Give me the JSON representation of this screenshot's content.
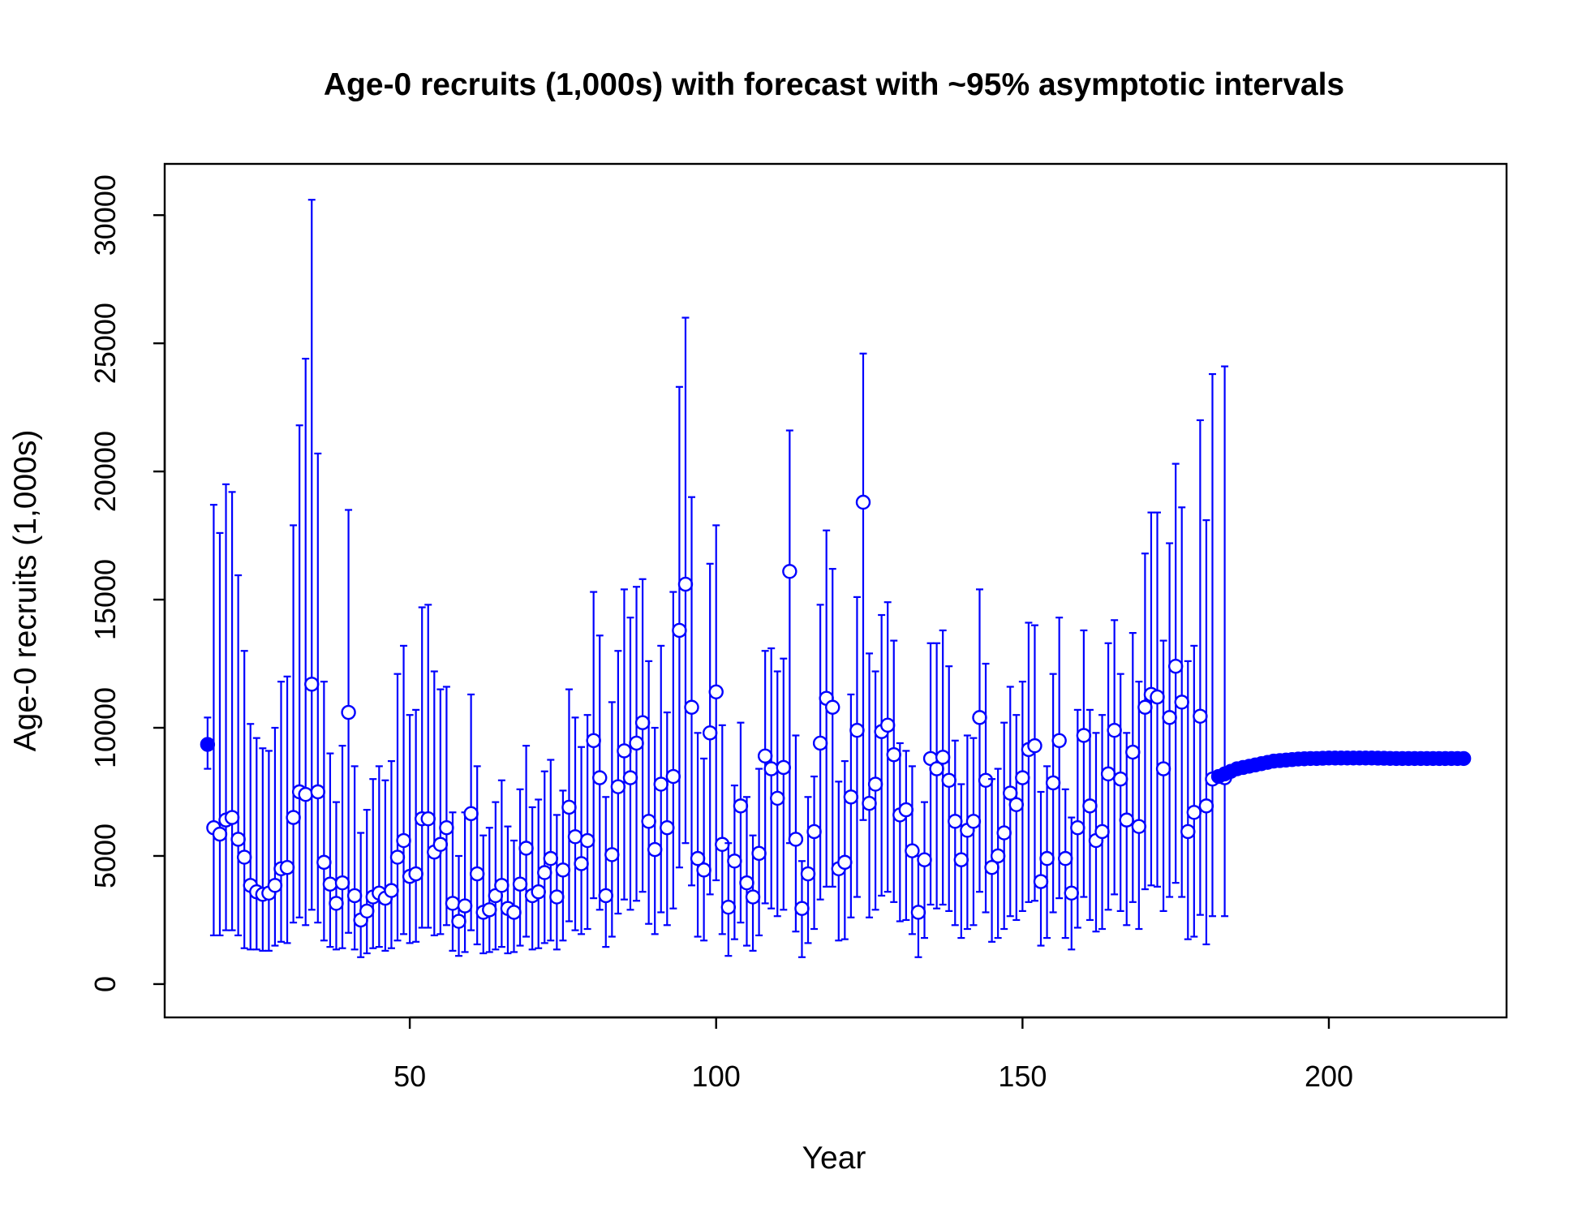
{
  "chart_data": {
    "type": "scatter",
    "title": "Age-0 recruits (1,000s) with forecast with ~95% asymptotic intervals",
    "xlabel": "Year",
    "ylabel": "Age-0 recruits (1,000s)",
    "xlim": [
      10,
      229
    ],
    "ylim": [
      -1300,
      32000
    ],
    "x_ticks": [
      50,
      100,
      150,
      200
    ],
    "x_tick_labels": [
      "50",
      "100",
      "150",
      "200"
    ],
    "y_ticks": [
      0,
      5000,
      10000,
      15000,
      20000,
      25000,
      30000
    ],
    "y_tick_labels": [
      "0",
      "5000",
      "10000",
      "15000",
      "20000",
      "25000",
      "30000"
    ],
    "grid": false,
    "color": "#0000FF",
    "series": [
      {
        "marker": "filled-circle",
        "points": [
          {
            "x": 17,
            "y": 9350,
            "lo": 8400,
            "hi": 10400
          }
        ]
      },
      {
        "marker": "open-circle",
        "x_start": 18,
        "values": [
          6100,
          5850,
          6400,
          6500,
          5650,
          4950,
          3850,
          3600,
          3500,
          3550,
          3850,
          4500,
          4550,
          6500,
          7500,
          7400,
          11700,
          7500,
          4750,
          3900,
          3150,
          3950,
          10600,
          3450,
          2500,
          2850,
          3400,
          3550,
          3350,
          3650,
          4950,
          5600,
          4200,
          4300,
          6450,
          6450,
          5150,
          5450,
          6100,
          3150,
          2450,
          3050,
          6650,
          4300,
          2800,
          2900,
          3450,
          3850,
          2950,
          2800,
          3900,
          5300,
          3450,
          3600,
          4350,
          4900,
          3400,
          4450,
          6900,
          5750,
          4700,
          5600,
          9500,
          8050,
          3450,
          5050,
          7700,
          9100,
          8050,
          9400,
          10200,
          6350,
          5250,
          7800,
          6100,
          8100,
          13800,
          15600,
          10800,
          4900,
          4450,
          9800,
          11400,
          5450,
          3000,
          4800,
          6950,
          3950,
          3400,
          5100,
          8900,
          8400,
          7250,
          8450,
          16100,
          5650,
          2950,
          4300,
          5950,
          9400,
          11150,
          10800,
          4500,
          4750,
          7300,
          9900,
          18800,
          7050,
          7800,
          9850,
          10100,
          8950,
          6600,
          6800,
          5200,
          2800,
          4850,
          8800,
          8400,
          8850,
          7950,
          6350,
          4850,
          6000,
          6350,
          10400,
          7950,
          4550,
          5000,
          5900,
          7450,
          7000,
          8050,
          9150,
          9300,
          4000,
          4900,
          7850,
          9500,
          4900,
          3550,
          6100,
          9700,
          6950,
          5600,
          5950,
          8200,
          9900,
          8000,
          6400,
          9050,
          6150,
          10800,
          11300,
          11200,
          8400,
          10400,
          12400,
          11000,
          5950,
          6700,
          10450,
          6950
        ],
        "lo": [
          1900,
          1900,
          2100,
          2100,
          1900,
          1400,
          1350,
          1350,
          1300,
          1300,
          1500,
          1650,
          1600,
          2400,
          2600,
          2300,
          2900,
          2400,
          1700,
          1450,
          1350,
          1400,
          2000,
          1350,
          1050,
          1200,
          1400,
          1450,
          1300,
          1400,
          1700,
          1950,
          1600,
          1650,
          2200,
          2200,
          1900,
          1950,
          2300,
          1300,
          1100,
          1250,
          2100,
          1550,
          1200,
          1250,
          1350,
          1450,
          1200,
          1250,
          1500,
          1850,
          1350,
          1400,
          1600,
          1700,
          1350,
          1700,
          2450,
          2100,
          1950,
          2150,
          3350,
          2900,
          1450,
          1850,
          2750,
          3300,
          2900,
          3250,
          3600,
          2350,
          1950,
          2800,
          2300,
          2950,
          4550,
          5500,
          3850,
          1850,
          1700,
          3500,
          4050,
          1950,
          1100,
          1750,
          2400,
          1500,
          1300,
          1900,
          3150,
          2950,
          2650,
          2900,
          5500,
          2050,
          1050,
          1600,
          2150,
          3300,
          3800,
          3800,
          1700,
          1750,
          2600,
          3400,
          6400,
          2600,
          2900,
          3450,
          3600,
          3200,
          2450,
          2500,
          1950,
          1050,
          1800,
          3100,
          2950,
          3100,
          2850,
          2300,
          1800,
          2150,
          2300,
          3600,
          2800,
          1650,
          1800,
          2150,
          2650,
          2500,
          2850,
          3200,
          3250,
          1500,
          1800,
          2800,
          3350,
          1800,
          1350,
          2200,
          3400,
          2500,
          2050,
          2150,
          2900,
          3500,
          2850,
          2300,
          3200,
          2150,
          3700,
          3850,
          3800,
          2850,
          3400,
          3950,
          3400,
          1750,
          1850,
          2700,
          1550
        ],
        "hi": [
          18700,
          17600,
          19500,
          19200,
          15950,
          13000,
          10150,
          9600,
          9200,
          9100,
          10000,
          11800,
          12000,
          17900,
          21800,
          24400,
          30600,
          20700,
          11800,
          9000,
          7100,
          9300,
          18500,
          8500,
          5900,
          6800,
          8000,
          8500,
          7950,
          8700,
          12100,
          13200,
          10500,
          10700,
          14700,
          14800,
          12200,
          11500,
          11600,
          6700,
          5000,
          6700,
          11300,
          8500,
          5800,
          6100,
          7100,
          7950,
          6150,
          5600,
          7600,
          9300,
          6900,
          7200,
          8300,
          8750,
          6600,
          7550,
          11500,
          10400,
          9250,
          10500,
          15300,
          13600,
          7300,
          11000,
          13000,
          15400,
          14300,
          15500,
          15800,
          12600,
          10000,
          13200,
          10600,
          15300,
          23300,
          26000,
          19000,
          9800,
          8800,
          16400,
          17900,
          10100,
          5500,
          7750,
          10200,
          7300,
          5800,
          8400,
          13000,
          13100,
          12200,
          12700,
          21600,
          9700,
          4800,
          7300,
          8100,
          14800,
          17700,
          16200,
          7900,
          8700,
          11300,
          15100,
          24600,
          12900,
          12200,
          14400,
          14900,
          13400,
          9400,
          9100,
          8500,
          5000,
          7100,
          13300,
          13300,
          13800,
          12400,
          9500,
          7800,
          9700,
          9600,
          15400,
          12500,
          8000,
          8400,
          10200,
          11600,
          10500,
          11800,
          14100,
          14000,
          7500,
          8500,
          12100,
          14300,
          7600,
          6500,
          10700,
          13800,
          10700,
          9800,
          10500,
          13300,
          14200,
          12100,
          9800,
          13700,
          11800,
          16800,
          18400,
          18400,
          13400,
          17200,
          20300,
          18600,
          12600,
          13200,
          22000,
          18100
        ]
      },
      {
        "marker": "open-circle",
        "points": [
          {
            "x": 181,
            "y": 8000,
            "lo": 2650,
            "hi": 23800
          },
          {
            "x": 183,
            "y": 8050,
            "lo": 2650,
            "hi": 24100
          }
        ]
      },
      {
        "marker": "filled-circle",
        "x_start": 182,
        "values": [
          8100,
          8200,
          8300,
          8400,
          8450,
          8500,
          8550,
          8600,
          8650,
          8700,
          8720,
          8740,
          8760,
          8780,
          8790,
          8800,
          8800,
          8810,
          8820,
          8820,
          8820,
          8820,
          8820,
          8820,
          8820,
          8820,
          8815,
          8810,
          8805,
          8800,
          8800,
          8800,
          8800,
          8800,
          8800,
          8800,
          8800,
          8800,
          8800,
          8800,
          8800
        ]
      }
    ]
  }
}
